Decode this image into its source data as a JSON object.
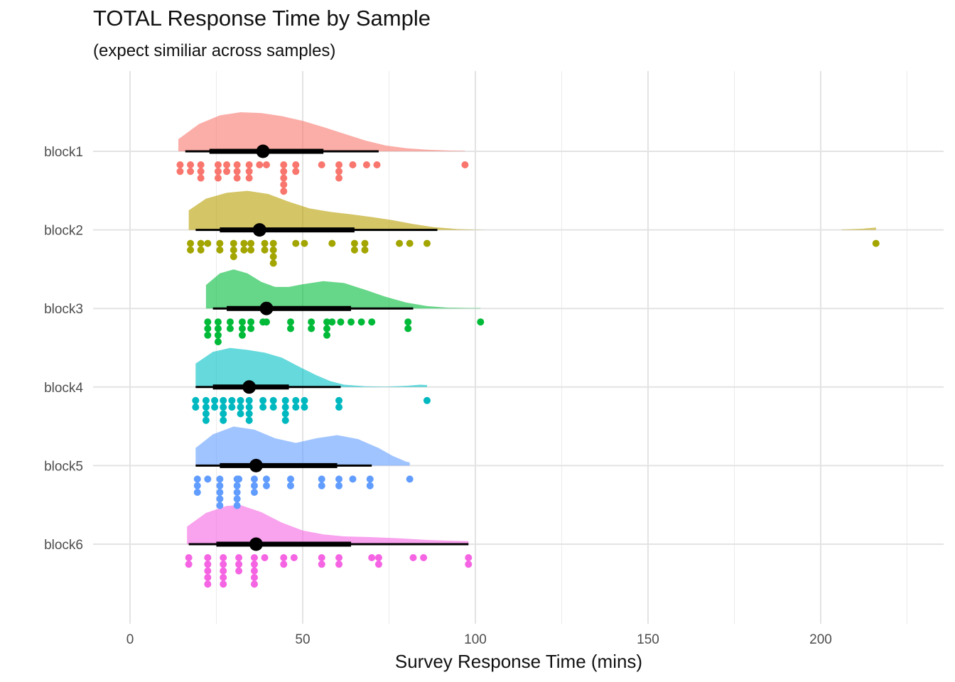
{
  "chart_data": {
    "type": "raincloud",
    "title": "TOTAL Response Time by Sample",
    "subtitle": "(expect similiar across samples)",
    "xlabel": "Survey Response Time (mins)",
    "ylabel": "",
    "xlim": [
      -8,
      237
    ],
    "xticks": [
      0,
      50,
      100,
      150,
      200
    ],
    "minor_xticks": [
      25,
      75,
      125,
      175,
      225
    ],
    "grid": true,
    "legend": "none",
    "categories": [
      "block1",
      "block2",
      "block3",
      "block4",
      "block5",
      "block6"
    ],
    "series": [
      {
        "name": "block1",
        "fill_color": "#F8766D",
        "point_color": "#F8766D",
        "median": 38.5,
        "interval_66": [
          23,
          56
        ],
        "interval_95": [
          16,
          72
        ],
        "density": [
          [
            14,
            0.31
          ],
          [
            20,
            0.7
          ],
          [
            26,
            0.92
          ],
          [
            32,
            1.0
          ],
          [
            38,
            0.98
          ],
          [
            44,
            0.9
          ],
          [
            50,
            0.78
          ],
          [
            56,
            0.62
          ],
          [
            62,
            0.45
          ],
          [
            68,
            0.28
          ],
          [
            74,
            0.15
          ],
          [
            80,
            0.08
          ],
          [
            86,
            0.04
          ],
          [
            92,
            0.02
          ],
          [
            97,
            0.01
          ]
        ],
        "points": [
          14.5,
          14.5,
          17.5,
          17.5,
          20.5,
          20.5,
          20.5,
          25.5,
          25.5,
          25.5,
          28,
          28,
          31,
          31,
          31,
          34.5,
          34.5,
          34.5,
          37.5,
          39.5,
          44.5,
          44.5,
          44.5,
          44.5,
          44.5,
          48,
          48,
          55.5,
          60.5,
          60.5,
          60.5,
          64.5,
          68.5,
          71.5,
          97
        ]
      },
      {
        "name": "block2",
        "fill_color": "#B79F00",
        "point_color": "#A3A500",
        "median": 37.5,
        "interval_66": [
          26,
          65
        ],
        "interval_95": [
          19,
          89
        ],
        "density": [
          [
            17,
            0.5
          ],
          [
            22,
            0.8
          ],
          [
            28,
            0.95
          ],
          [
            34,
            1.0
          ],
          [
            40,
            0.92
          ],
          [
            46,
            0.72
          ],
          [
            52,
            0.55
          ],
          [
            58,
            0.46
          ],
          [
            64,
            0.4
          ],
          [
            70,
            0.33
          ],
          [
            76,
            0.25
          ],
          [
            82,
            0.15
          ],
          [
            88,
            0.07
          ],
          [
            95,
            0.02
          ],
          [
            100,
            0.005
          ],
          [
            103,
            0
          ],
          [
            200,
            0
          ],
          [
            206,
            0.01
          ],
          [
            212,
            0.03
          ],
          [
            216,
            0.06
          ]
        ],
        "points": [
          17.5,
          17.5,
          20.5,
          20.5,
          22.5,
          26,
          26,
          30,
          30,
          30,
          33,
          33,
          35,
          35,
          39,
          39,
          41.5,
          41.5,
          41.5,
          41.5,
          48,
          50.5,
          58.5,
          65,
          65,
          68,
          68,
          78,
          81,
          86,
          216
        ]
      },
      {
        "name": "block3",
        "fill_color": "#00BA38",
        "point_color": "#00BA38",
        "median": 39.5,
        "interval_66": [
          28,
          64
        ],
        "interval_95": [
          24,
          82
        ],
        "density": [
          [
            22,
            0.6
          ],
          [
            26,
            0.9
          ],
          [
            30,
            1.0
          ],
          [
            34,
            0.9
          ],
          [
            38,
            0.68
          ],
          [
            42,
            0.55
          ],
          [
            46,
            0.55
          ],
          [
            50,
            0.62
          ],
          [
            56,
            0.7
          ],
          [
            62,
            0.65
          ],
          [
            68,
            0.48
          ],
          [
            74,
            0.3
          ],
          [
            80,
            0.15
          ],
          [
            86,
            0.06
          ],
          [
            92,
            0.02
          ],
          [
            98,
            0.01
          ],
          [
            101.5,
            0.01
          ]
        ],
        "points": [
          22.5,
          22.5,
          22.5,
          25.5,
          25.5,
          25.5,
          25.5,
          29,
          29,
          32.5,
          32.5,
          32.5,
          35,
          35,
          38.5,
          39.5,
          46.5,
          46.5,
          52.5,
          52.5,
          57,
          57,
          57,
          58.5,
          61,
          64,
          67,
          70,
          80.5,
          80.5,
          101.5
        ]
      },
      {
        "name": "block4",
        "fill_color": "#00BFC4",
        "point_color": "#00B8BF",
        "median": 34.5,
        "interval_66": [
          24,
          46
        ],
        "interval_95": [
          19,
          61
        ],
        "density": [
          [
            19,
            0.6
          ],
          [
            24,
            0.9
          ],
          [
            29,
            1.0
          ],
          [
            34,
            0.95
          ],
          [
            39,
            0.88
          ],
          [
            44,
            0.75
          ],
          [
            49,
            0.52
          ],
          [
            54,
            0.3
          ],
          [
            58,
            0.15
          ],
          [
            62,
            0.06
          ],
          [
            68,
            0.02
          ],
          [
            74,
            0.01
          ],
          [
            80,
            0.03
          ],
          [
            84,
            0.06
          ],
          [
            86,
            0.05
          ]
        ],
        "points": [
          19,
          19,
          22,
          22,
          22,
          22,
          24.5,
          24.5,
          27,
          27,
          27,
          27,
          29.5,
          29.5,
          32,
          32,
          32,
          34.5,
          34.5,
          34.5,
          34.5,
          38.5,
          38.5,
          41.5,
          41.5,
          45,
          45,
          45,
          45,
          48,
          48,
          50.5,
          50.5,
          60.5,
          60.5,
          86
        ]
      },
      {
        "name": "block5",
        "fill_color": "#619CFF",
        "point_color": "#619CFF",
        "median": 36.5,
        "interval_66": [
          26,
          60
        ],
        "interval_95": [
          19,
          70
        ],
        "density": [
          [
            19,
            0.45
          ],
          [
            24,
            0.8
          ],
          [
            30,
            1.0
          ],
          [
            36,
            0.92
          ],
          [
            42,
            0.7
          ],
          [
            48,
            0.58
          ],
          [
            54,
            0.7
          ],
          [
            60,
            0.78
          ],
          [
            66,
            0.68
          ],
          [
            72,
            0.45
          ],
          [
            76,
            0.25
          ],
          [
            80,
            0.1
          ],
          [
            81,
            0.08
          ]
        ],
        "points": [
          19.5,
          19.5,
          19.5,
          22.5,
          26,
          26,
          26,
          26,
          26,
          31,
          31,
          31,
          31,
          31,
          31.5,
          36,
          36,
          36,
          39.5,
          39.5,
          46.5,
          46.5,
          55.5,
          55.5,
          60.5,
          60.5,
          64.5,
          69.5,
          69.5,
          81
        ]
      },
      {
        "name": "block6",
        "fill_color": "#F564E3",
        "point_color": "#F564E3",
        "median": 36.5,
        "interval_66": [
          25,
          64
        ],
        "interval_95": [
          17,
          98
        ],
        "density": [
          [
            16.5,
            0.45
          ],
          [
            22,
            0.8
          ],
          [
            28,
            0.98
          ],
          [
            32,
            1.0
          ],
          [
            38,
            0.82
          ],
          [
            44,
            0.55
          ],
          [
            50,
            0.35
          ],
          [
            56,
            0.25
          ],
          [
            62,
            0.2
          ],
          [
            70,
            0.18
          ],
          [
            78,
            0.15
          ],
          [
            86,
            0.11
          ],
          [
            92,
            0.09
          ],
          [
            98,
            0.08
          ]
        ],
        "points": [
          17,
          17,
          22.5,
          22.5,
          22.5,
          22.5,
          22.5,
          27,
          27,
          27,
          27,
          27,
          31.5,
          31.5,
          31.5,
          36,
          36,
          36,
          36,
          36,
          39,
          44.5,
          44.5,
          47.5,
          55.5,
          55.5,
          60.5,
          60.5,
          70,
          72,
          72,
          82,
          85,
          98,
          98
        ]
      }
    ]
  }
}
